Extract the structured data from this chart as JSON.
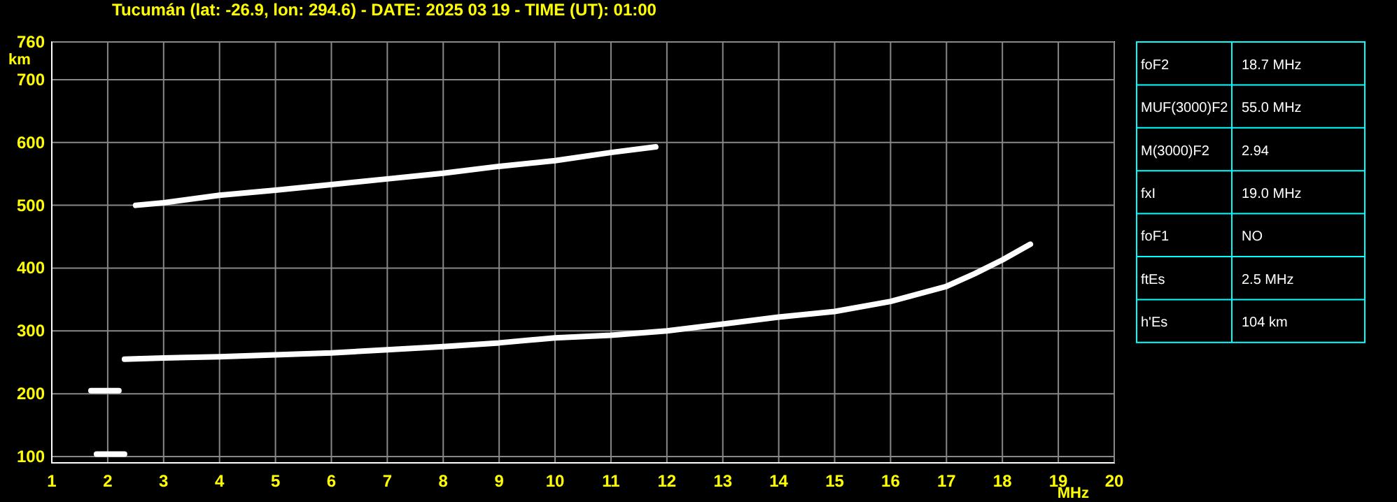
{
  "chart_data": [
    {
      "type": "line",
      "title": "Tucumán (lat: -26.9, lon: 294.6) - DATE: 2025 03 19 - TIME (UT): 01:00",
      "xlabel": "MHz",
      "ylabel": "km",
      "xlim": [
        1,
        20
      ],
      "ylim": [
        90,
        760
      ],
      "xticks": [
        1,
        2,
        3,
        4,
        5,
        6,
        7,
        8,
        9,
        10,
        11,
        12,
        13,
        14,
        15,
        16,
        17,
        18,
        19,
        20
      ],
      "yticks": [
        100,
        200,
        300,
        400,
        500,
        600,
        700,
        760
      ],
      "grid": true,
      "marker": "none",
      "line_style": "solid",
      "series": [
        {
          "color": "#ffffff",
          "x": [
            2.3,
            3,
            4,
            5,
            6,
            7,
            8,
            9,
            10,
            11,
            12,
            13,
            14,
            15,
            16,
            17,
            17.5,
            18,
            18.5
          ],
          "values": [
            255,
            257,
            259,
            262,
            265,
            270,
            275,
            281,
            289,
            293,
            300,
            311,
            322,
            331,
            347,
            371,
            391,
            413,
            438
          ]
        },
        {
          "color": "#ffffff",
          "x": [
            2.5,
            3,
            4,
            5,
            6,
            7,
            8,
            9,
            10,
            11,
            11.8
          ],
          "values": [
            500,
            504,
            516,
            524,
            533,
            542,
            551,
            562,
            571,
            584,
            593
          ]
        },
        {
          "color": "#ffffff",
          "x": [
            1.8,
            2.3
          ],
          "values": [
            104,
            104
          ]
        },
        {
          "color": "#ffffff",
          "x": [
            1.7,
            2.2
          ],
          "values": [
            205,
            205
          ]
        }
      ]
    },
    {
      "type": "other",
      "annotations": [
        "foF2",
        "18.7 MHz",
        "MUF(3000)F2",
        "55.0 MHz",
        "M(3000)F2",
        "2.94",
        "fxI",
        "19.0 MHz",
        "foF1",
        "NO",
        "ftEs",
        "2.5 MHz",
        "h'Es",
        "104 km"
      ]
    }
  ]
}
